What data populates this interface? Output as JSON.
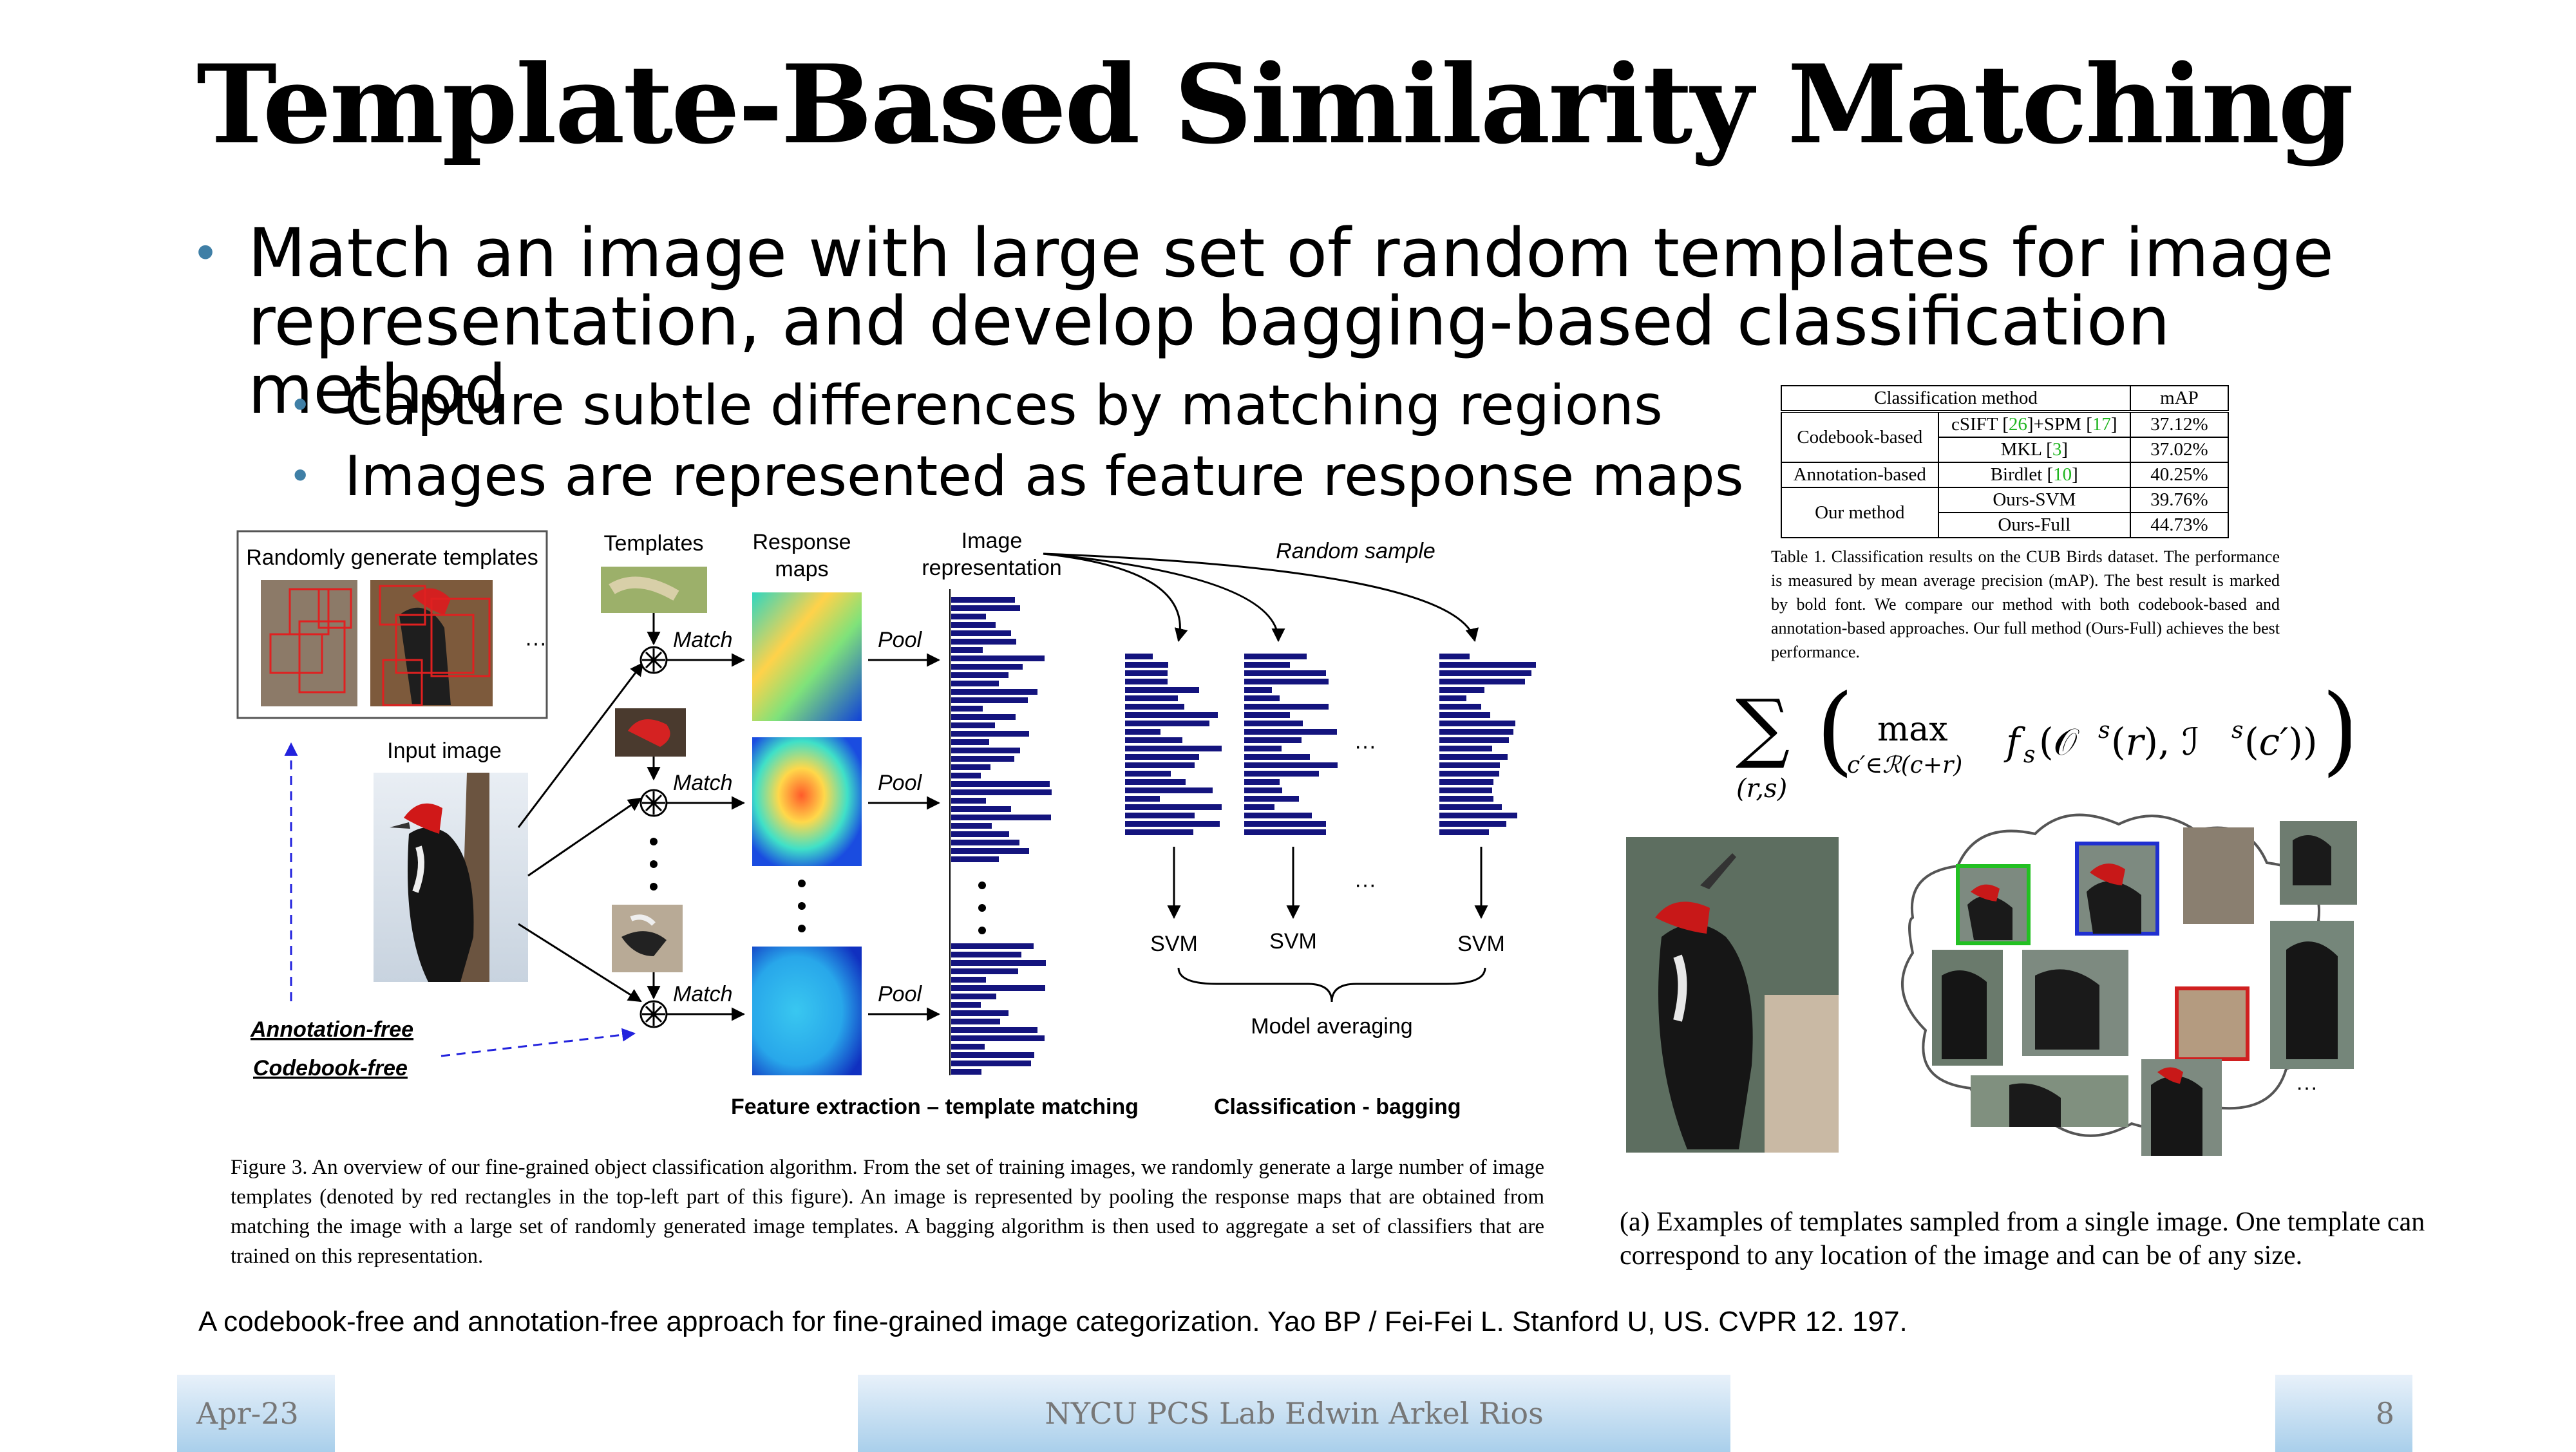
{
  "slide": {
    "title": "Template-Based Similarity Matching",
    "bullets": {
      "main": "Match an image with large set of random templates for image representation, and develop bagging-based classification method",
      "sub1": "Capture subtle differences by matching regions",
      "sub2": "Images are represented as feature response maps"
    },
    "citation": "A codebook-free and annotation-free approach for fine-grained image categorization. Yao BP / Fei-Fei L. Stanford U, US. CVPR 12. 197."
  },
  "table": {
    "headers": [
      "Classification method",
      "mAP"
    ],
    "groups": [
      {
        "group": "Codebook-based",
        "rows": [
          {
            "method_pre": "cSIFT [",
            "ref1": "26",
            "method_mid": "]+SPM [",
            "ref2": "17",
            "method_post": "]",
            "map": "37.12%"
          },
          {
            "method_pre": "MKL [",
            "ref1": "3",
            "method_post": "]",
            "map": "37.02%"
          }
        ]
      },
      {
        "group": "Annotation-based",
        "rows": [
          {
            "method_pre": "Birdlet [",
            "ref1": "10",
            "method_post": "]",
            "map": "40.25%"
          }
        ]
      },
      {
        "group": "Our method",
        "rows": [
          {
            "method_pre": "Ours-SVM",
            "map": "39.76%"
          },
          {
            "method_pre": "Ours-Full",
            "map": "44.73%"
          }
        ]
      }
    ],
    "caption": "Table 1. Classification results on the CUB Birds dataset. The performance is measured by mean average precision (mAP). The best result is marked by bold font. We compare our method with both codebook-based and annotation-based approaches. Our full method (Ours-Full) achieves the best performance."
  },
  "figure3": {
    "labels": {
      "random_templates": "Randomly generate templates",
      "templates": "Templates",
      "response_maps_1": "Response",
      "response_maps_2": "maps",
      "image_rep_1": "Image",
      "image_rep_2": "representation",
      "random_sample": "Random sample",
      "input_image": "Input image",
      "match": "Match",
      "pool": "Pool",
      "svm": "SVM",
      "model_averaging": "Model averaging",
      "annotation_free": "Annotation-free",
      "codebook_free": "Codebook-free",
      "feature_extraction": "Feature extraction – template matching",
      "classification": "Classification - bagging",
      "ellipsis": "···"
    },
    "caption": "Figure 3. An overview of our fine-grained object classification algorithm. From the set of training images, we randomly generate a large number of image templates (denoted by red rectangles in the top-left part of this figure). An image is represented by pooling the response maps that are obtained from matching the image with a large set of randomly generated image templates. A bagging algorithm is then used to aggregate a set of classifiers that are trained on this representation."
  },
  "figure_right": {
    "caption": "(a) Examples of templates sampled from a single image. One template can correspond to any location of the image and can be of any size.",
    "ellipsis": "···"
  },
  "footer": {
    "date": "Apr-23",
    "center": "NYCU PCS Lab Edwin Arkel Rios",
    "page": "8"
  },
  "colors": {
    "bullet": "#3f7fa6",
    "bar": "#14147e",
    "template_red": "#e02020",
    "blue_dash": "#2222dd",
    "green_ref": "#1fb51f"
  }
}
